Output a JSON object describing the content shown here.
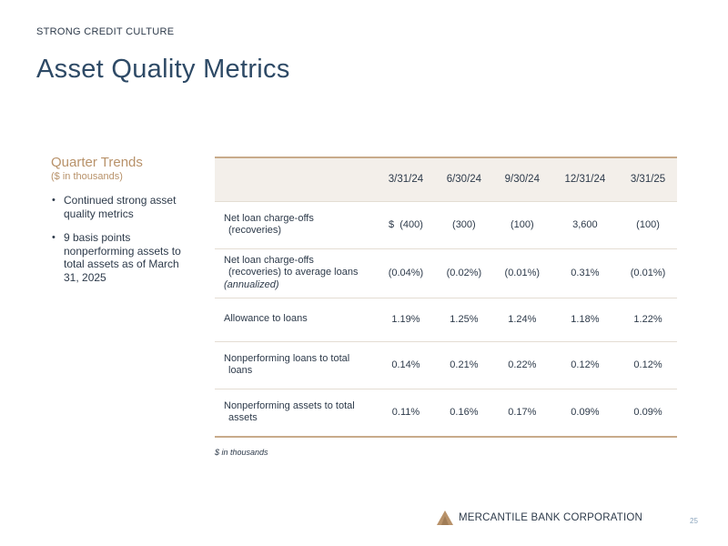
{
  "header": {
    "kicker": "STRONG CREDIT CULTURE",
    "title": "Asset Quality Metrics"
  },
  "sidebar": {
    "title": "Quarter Trends",
    "subtitle": "($ in thousands)",
    "bullets": [
      "Continued strong asset quality metrics",
      "9 basis points nonperforming assets to total assets as of March 31, 2025"
    ]
  },
  "table": {
    "columns": [
      "3/31/24",
      "6/30/24",
      "9/30/24",
      "12/31/24",
      "3/31/25"
    ],
    "rows": [
      {
        "label_line1": "Net loan charge-offs",
        "label_line2": "(recoveries)",
        "label_line3": "",
        "values": [
          "$  (400)",
          "(300)",
          "(100)",
          "3,600",
          "(100)"
        ]
      },
      {
        "label_line1": "Net loan charge-offs",
        "label_line2": "(recoveries) to average loans",
        "label_line3": "(annualized)",
        "values": [
          "(0.04%)",
          "(0.02%)",
          "(0.01%)",
          "0.31%",
          "(0.01%)"
        ]
      },
      {
        "label_line1": "Allowance to loans",
        "label_line2": "",
        "label_line3": "",
        "values": [
          "1.19%",
          "1.25%",
          "1.24%",
          "1.18%",
          "1.22%"
        ]
      },
      {
        "label_line1": "Nonperforming loans to total",
        "label_line2": "loans",
        "label_line3": "",
        "values": [
          "0.14%",
          "0.21%",
          "0.22%",
          "0.12%",
          "0.12%"
        ]
      },
      {
        "label_line1": "Nonperforming assets to total",
        "label_line2": "assets",
        "label_line3": "",
        "values": [
          "0.11%",
          "0.16%",
          "0.17%",
          "0.09%",
          "0.09%"
        ]
      }
    ]
  },
  "footnote": "$ in thousands",
  "footer": {
    "company": "MERCANTILE BANK CORPORATION",
    "logo_icon": "triangle-mountain-icon",
    "page_number": "25"
  },
  "colors": {
    "title": "#2e4a66",
    "accent": "#b8926a",
    "rule": "#c8ab8b",
    "header_fill": "#f3efea"
  }
}
